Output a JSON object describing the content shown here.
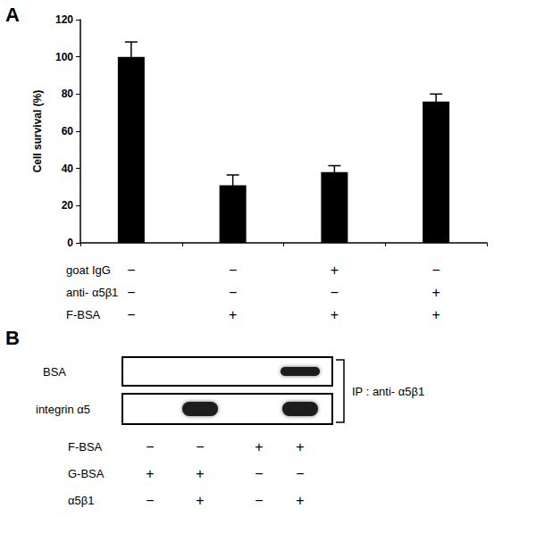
{
  "chart_data": {
    "type": "bar",
    "panel": "A",
    "ylabel": "Cell survival (%)",
    "categories": [
      null,
      null,
      null,
      null
    ],
    "values": [
      100,
      31,
      38,
      76
    ],
    "errors": [
      8,
      5.5,
      3.5,
      4
    ],
    "color": "#000000",
    "ylim": [
      0,
      120
    ],
    "yticks": [
      0,
      20,
      40,
      60,
      80,
      100,
      120
    ],
    "grid": false,
    "conditions": [
      {
        "label": "goat IgG",
        "marks": [
          "−",
          "−",
          "+",
          "−"
        ]
      },
      {
        "label": "anti- α5β1",
        "marks": [
          "−",
          "−",
          "−",
          "+"
        ]
      },
      {
        "label": "F-BSA",
        "marks": [
          "−",
          "+",
          "+",
          "+"
        ]
      }
    ]
  },
  "blot": {
    "panel": "B",
    "ip_label": "IP : anti- α5β1",
    "rows": [
      {
        "label": "BSA",
        "bands": [
          false,
          false,
          false,
          true
        ]
      },
      {
        "label": "integrin α5",
        "bands": [
          false,
          true,
          false,
          true
        ]
      }
    ],
    "conditions": [
      {
        "label": "F-BSA",
        "marks": [
          "−",
          "−",
          "+",
          "+"
        ]
      },
      {
        "label": "G-BSA",
        "marks": [
          "+",
          "+",
          "−",
          "−"
        ]
      },
      {
        "label": "α5β1",
        "marks": [
          "−",
          "+",
          "−",
          "+"
        ]
      }
    ]
  }
}
